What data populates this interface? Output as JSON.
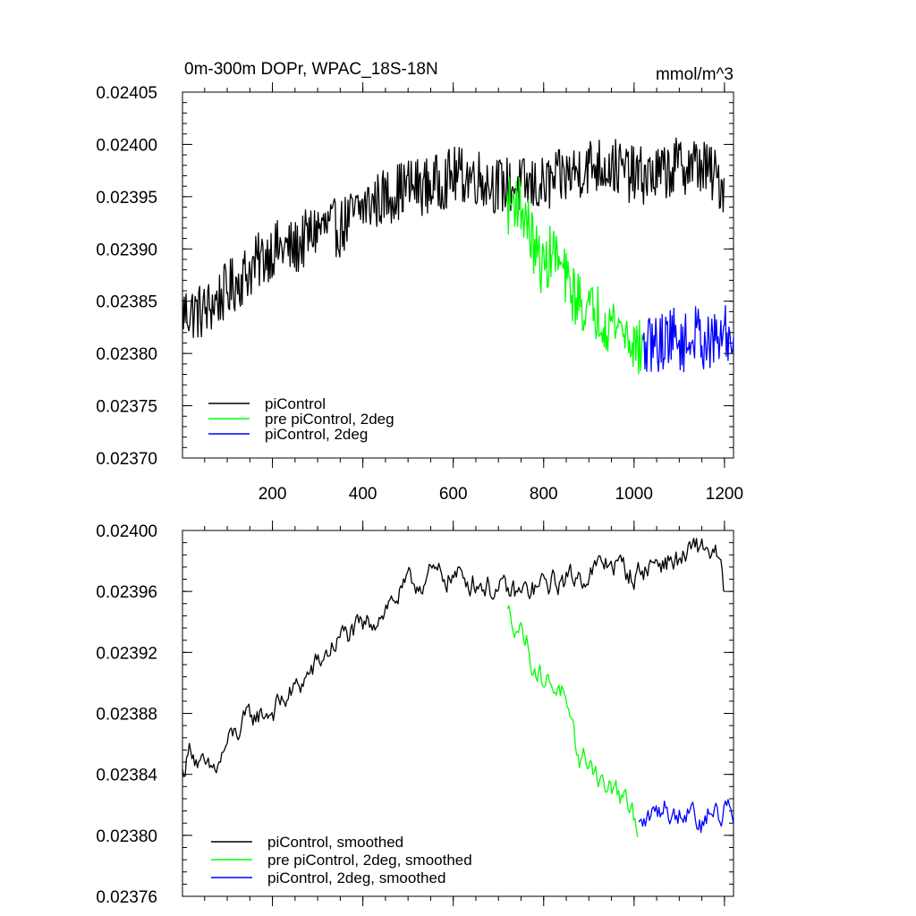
{
  "chart_data": [
    {
      "type": "line",
      "title": "0m-300m DOPr, WPAC_18S-18N",
      "units_label": "mmol/m^3",
      "xlim": [
        1,
        1220
      ],
      "ylim": [
        0.0237,
        0.02405
      ],
      "x_ticks": [
        200,
        400,
        600,
        800,
        1000,
        1200
      ],
      "x_tick_labels": [
        "200",
        "400",
        "600",
        "800",
        "1000",
        "1200"
      ],
      "y_ticks": [
        0.0237,
        0.02375,
        0.0238,
        0.02385,
        0.0239,
        0.02395,
        0.024,
        0.02405
      ],
      "y_tick_labels": [
        "0.02370",
        "0.02375",
        "0.02380",
        "0.02385",
        "0.02390",
        "0.02395",
        "0.02400",
        "0.02405"
      ],
      "legend_position": "bottom-left",
      "series": [
        {
          "name": "piControl",
          "color": "#000000",
          "x": [
            1,
            50,
            100,
            150,
            200,
            250,
            300,
            350,
            400,
            450,
            500,
            550,
            600,
            650,
            700,
            750,
            800,
            850,
            900,
            950,
            1000,
            1050,
            1100,
            1150,
            1200
          ],
          "values": [
            0.02384,
            0.02384,
            0.02386,
            0.02388,
            0.0239,
            0.0239,
            0.02392,
            0.02392,
            0.02394,
            0.02395,
            0.02396,
            0.02396,
            0.02397,
            0.02397,
            0.02396,
            0.02396,
            0.02396,
            0.02397,
            0.02398,
            0.02398,
            0.02397,
            0.02397,
            0.02398,
            0.02398,
            0.02396
          ]
        },
        {
          "name": "pre piControl, 2deg",
          "color": "#00ff00",
          "x": [
            720,
            740,
            760,
            780,
            800,
            820,
            840,
            860,
            880,
            900,
            920,
            940,
            960,
            980,
            1000,
            1020
          ],
          "values": [
            0.02394,
            0.02395,
            0.02393,
            0.0239,
            0.02388,
            0.0239,
            0.02388,
            0.02386,
            0.02385,
            0.02384,
            0.02384,
            0.02383,
            0.02383,
            0.02382,
            0.02381,
            0.0238
          ]
        },
        {
          "name": "piControl, 2deg",
          "color": "#0000ff",
          "x": [
            1020,
            1040,
            1060,
            1080,
            1100,
            1120,
            1140,
            1160,
            1180,
            1200,
            1220
          ],
          "values": [
            0.0238,
            0.02381,
            0.02381,
            0.02382,
            0.02381,
            0.02381,
            0.02382,
            0.02381,
            0.02381,
            0.02382,
            0.02381
          ]
        }
      ]
    },
    {
      "type": "line",
      "xlim": [
        1,
        1220
      ],
      "ylim": [
        0.02376,
        0.024
      ],
      "x_ticks": [
        200,
        400,
        600,
        800,
        1000,
        1200
      ],
      "y_ticks": [
        0.02376,
        0.0238,
        0.02384,
        0.02388,
        0.02392,
        0.02396,
        0.024
      ],
      "y_tick_labels": [
        "0.02376",
        "0.02380",
        "0.02384",
        "0.02388",
        "0.02392",
        "0.02396",
        "0.02400"
      ],
      "legend_position": "bottom-left",
      "series": [
        {
          "name": "piControl, smoothed",
          "color": "#000000",
          "x": [
            1,
            20,
            40,
            60,
            80,
            100,
            150,
            200,
            250,
            300,
            350,
            400,
            450,
            500,
            550,
            600,
            650,
            700,
            750,
            800,
            850,
            900,
            950,
            1000,
            1050,
            1100,
            1150,
            1180,
            1200
          ],
          "values": [
            0.02384,
            0.02386,
            0.023845,
            0.02384,
            0.023845,
            0.02386,
            0.023877,
            0.023882,
            0.023895,
            0.023912,
            0.02393,
            0.023935,
            0.02395,
            0.023963,
            0.02397,
            0.02397,
            0.023967,
            0.02396,
            0.023958,
            0.023964,
            0.023968,
            0.023972,
            0.02398,
            0.02397,
            0.02398,
            0.02398,
            0.02399,
            0.023985,
            0.02396
          ]
        },
        {
          "name": "pre piControl, 2deg, smoothed",
          "color": "#00ff00",
          "x": [
            720,
            740,
            760,
            780,
            800,
            820,
            840,
            860,
            880,
            900,
            920,
            940,
            960,
            980,
            1000,
            1010
          ],
          "values": [
            0.023945,
            0.02394,
            0.02393,
            0.02391,
            0.023902,
            0.0239,
            0.023895,
            0.023865,
            0.02385,
            0.02385,
            0.02384,
            0.02383,
            0.02383,
            0.02382,
            0.02381,
            0.023805
          ]
        },
        {
          "name": "piControl, 2deg, smoothed",
          "color": "#0000ff",
          "x": [
            1010,
            1030,
            1050,
            1070,
            1090,
            1110,
            1130,
            1150,
            1170,
            1190,
            1210,
            1220
          ],
          "values": [
            0.023805,
            0.02381,
            0.023815,
            0.02382,
            0.023812,
            0.023818,
            0.02382,
            0.023805,
            0.02382,
            0.02381,
            0.023825,
            0.023805
          ]
        }
      ]
    }
  ]
}
